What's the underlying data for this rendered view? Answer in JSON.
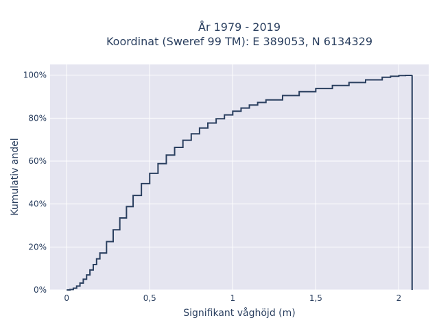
{
  "chart_data": {
    "type": "line",
    "title_line1": "År 1979 - 2019",
    "title_line2": "Koordinat (Sweref 99 TM): E 389053, N 6134329",
    "xlabel": "Signifikant våghöjd (m)",
    "ylabel": "Kumulativ andel",
    "xlim": [
      -0.1,
      2.18
    ],
    "ylim": [
      0,
      1.05
    ],
    "x_ticks": [
      {
        "value": 0,
        "label": "0"
      },
      {
        "value": 0.5,
        "label": "0,5"
      },
      {
        "value": 1,
        "label": "1"
      },
      {
        "value": 1.5,
        "label": "1,5"
      },
      {
        "value": 2,
        "label": "2"
      }
    ],
    "y_ticks": [
      {
        "value": 0,
        "label": "0%"
      },
      {
        "value": 0.2,
        "label": "20%"
      },
      {
        "value": 0.4,
        "label": "40%"
      },
      {
        "value": 0.6,
        "label": "60%"
      },
      {
        "value": 0.8,
        "label": "80%"
      },
      {
        "value": 1.0,
        "label": "100%"
      }
    ],
    "grid": true,
    "line_shape": "step",
    "background_color": "#e5e5f0",
    "line_color": "#2a3f5f",
    "series": [
      {
        "x": [
          0.0,
          0.02,
          0.04,
          0.06,
          0.08,
          0.1,
          0.12,
          0.14,
          0.16,
          0.18,
          0.2,
          0.24,
          0.28,
          0.32,
          0.36,
          0.4,
          0.45,
          0.5,
          0.55,
          0.6,
          0.65,
          0.7,
          0.75,
          0.8,
          0.85,
          0.9,
          0.95,
          1.0,
          1.05,
          1.1,
          1.15,
          1.2,
          1.3,
          1.4,
          1.5,
          1.6,
          1.7,
          1.8,
          1.9,
          1.95,
          2.0,
          2.04,
          2.08,
          2.08
        ],
        "y": [
          0.0,
          0.002,
          0.008,
          0.018,
          0.032,
          0.05,
          0.07,
          0.093,
          0.118,
          0.145,
          0.172,
          0.225,
          0.28,
          0.335,
          0.388,
          0.44,
          0.495,
          0.543,
          0.588,
          0.628,
          0.664,
          0.697,
          0.727,
          0.754,
          0.777,
          0.797,
          0.815,
          0.832,
          0.847,
          0.861,
          0.873,
          0.885,
          0.905,
          0.923,
          0.938,
          0.952,
          0.966,
          0.978,
          0.99,
          0.995,
          0.998,
          0.999,
          1.0,
          0.0
        ]
      }
    ]
  }
}
